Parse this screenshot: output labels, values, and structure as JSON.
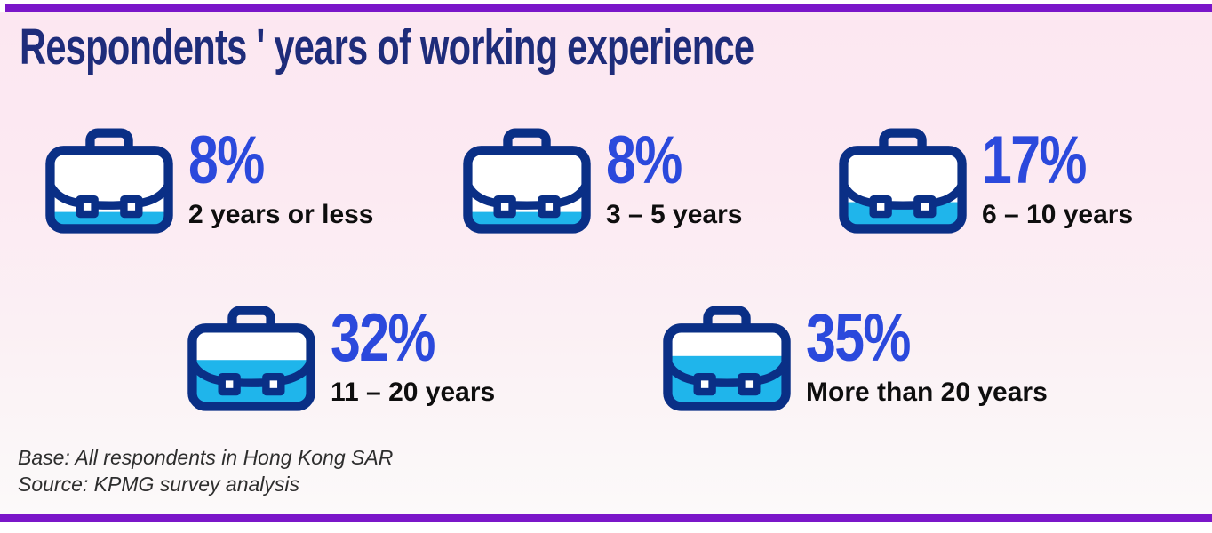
{
  "title": "Respondents ' years of working experience",
  "chart_data": {
    "type": "bar",
    "variant": "pictogram-briefcase-fill",
    "title": "Respondents ' years of working experience",
    "unit": "%",
    "categories": [
      "2 years or less",
      "3 – 5 years",
      "6 – 10 years",
      "11 – 20 years",
      "More than 20 years"
    ],
    "values": [
      8,
      8,
      17,
      32,
      35
    ],
    "max_value": 35,
    "items": [
      {
        "percent": "8%",
        "label": "2 years or less"
      },
      {
        "percent": "8%",
        "label": "3 – 5 years"
      },
      {
        "percent": "17%",
        "label": "6 – 10 years"
      },
      {
        "percent": "32%",
        "label": "11 – 20 years"
      },
      {
        "percent": "35%",
        "label": "More than 20 years"
      }
    ],
    "base_note": "Base: All respondents in Hong Kong SAR",
    "source_note": "Source: KPMG survey analysis",
    "legend": null,
    "grid": false
  },
  "colors": {
    "accent_purple": "#7a16c9",
    "title_navy": "#1e2c7a",
    "percent_blue": "#2b49dc",
    "briefcase_navy": "#0a2f86",
    "briefcase_fill_cyan": "#1fb5eb",
    "label_black": "#0e0e0e",
    "background_pink_top": "#fce7f1",
    "background_bottom": "#fcfafa"
  }
}
